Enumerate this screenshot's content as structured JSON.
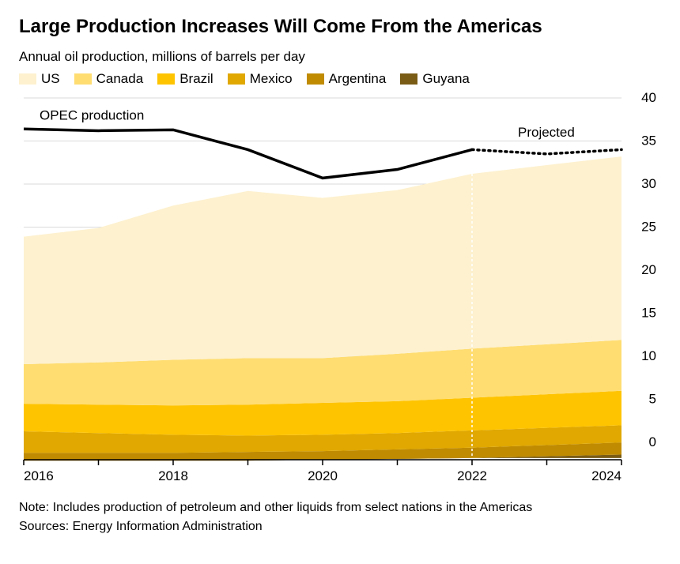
{
  "title": "Large Production Increases Will Come From the Americas",
  "subtitle": "Annual oil production, millions of barrels per day",
  "note": "Note: Includes production of petroleum and other liquids from select nations in the Americas",
  "source": "Sources: Energy Information Administration",
  "legend": {
    "series": [
      {
        "label": "US",
        "color": "#fdf1cf"
      },
      {
        "label": "Canada",
        "color": "#ffdd71"
      },
      {
        "label": "Brazil",
        "color": "#ffc400"
      },
      {
        "label": "Mexico",
        "color": "#e0a800"
      },
      {
        "label": "Argentina",
        "color": "#c08b00"
      },
      {
        "label": "Guyana",
        "color": "#7a5c16"
      }
    ]
  },
  "chart": {
    "type": "stacked-area-with-line",
    "background": "#ffffff",
    "grid_color": "#d9d9d9",
    "axis_color": "#000000",
    "xlabels": [
      "2016",
      "2018",
      "2020",
      "2022",
      "2024"
    ],
    "xvals": [
      2016,
      2018,
      2020,
      2022,
      2024
    ],
    "xlim": [
      2016,
      2024
    ],
    "ylim": [
      -2,
      40
    ],
    "yticks": [
      0,
      5,
      10,
      15,
      20,
      25,
      30,
      35,
      40
    ],
    "years": [
      2016,
      2017,
      2018,
      2019,
      2020,
      2021,
      2022,
      2023,
      2024
    ],
    "projection_start": 2022,
    "stacked_series": [
      {
        "name": "Guyana",
        "color": "#7a5c16",
        "values": [
          -0.3,
          -0.3,
          -0.3,
          -0.3,
          -0.2,
          -0.1,
          0.0,
          0.2,
          0.4
        ]
      },
      {
        "name": "Argentina",
        "color": "#c08b00",
        "values": [
          0.9,
          0.9,
          0.9,
          1.0,
          1.0,
          1.1,
          1.2,
          1.3,
          1.4
        ]
      },
      {
        "name": "Mexico",
        "color": "#e0a800",
        "values": [
          2.5,
          2.3,
          2.1,
          1.9,
          1.9,
          1.9,
          2.0,
          2.0,
          2.0
        ]
      },
      {
        "name": "Brazil",
        "color": "#ffc400",
        "values": [
          3.2,
          3.3,
          3.4,
          3.6,
          3.7,
          3.7,
          3.8,
          3.9,
          4.0
        ]
      },
      {
        "name": "Canada",
        "color": "#ffdd71",
        "values": [
          4.6,
          4.9,
          5.3,
          5.4,
          5.2,
          5.5,
          5.7,
          5.8,
          5.9
        ]
      },
      {
        "name": "US",
        "color": "#fdf1cf",
        "values": [
          14.8,
          15.6,
          17.9,
          19.4,
          18.6,
          19.0,
          20.3,
          20.8,
          21.3
        ]
      }
    ],
    "line": {
      "label": "OPEC production",
      "projected_label": "Projected",
      "color": "#000000",
      "width": 3.5,
      "values": [
        36.4,
        36.2,
        36.3,
        34.0,
        30.7,
        31.7,
        34.0,
        33.5,
        34.0
      ]
    },
    "projection_line_color": "#ffffff",
    "tick_fontsize": 17,
    "annotation_fontsize": 17
  }
}
